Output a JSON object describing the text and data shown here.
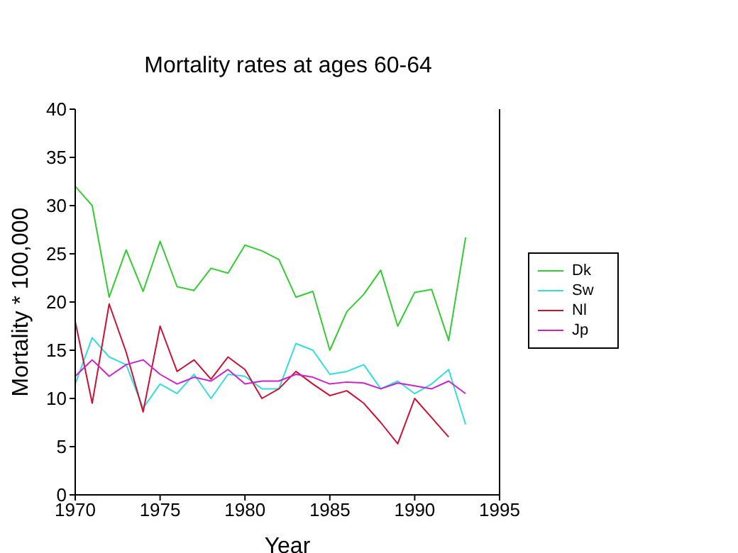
{
  "chart_data": {
    "type": "line",
    "title": "Mortality rates at ages 60-64",
    "xlabel": "Year",
    "ylabel": "Mortality * 100,000",
    "x": [
      1970,
      1971,
      1972,
      1973,
      1974,
      1975,
      1976,
      1977,
      1978,
      1979,
      1980,
      1981,
      1982,
      1983,
      1984,
      1985,
      1986,
      1987,
      1988,
      1989,
      1990,
      1991,
      1992,
      1993
    ],
    "series": [
      {
        "name": "Dk",
        "color": "#33cc33",
        "values": [
          32,
          30,
          20.5,
          25.4,
          21.1,
          26.3,
          21.6,
          21.2,
          23.5,
          23,
          25.9,
          25.3,
          24.4,
          20.5,
          21.1,
          15,
          19,
          20.8,
          23.3,
          17.5,
          21,
          21.3,
          16,
          26.7
        ]
      },
      {
        "name": "Sw",
        "color": "#33dddd",
        "values": [
          11.5,
          16.3,
          14.3,
          13.5,
          9,
          11.5,
          10.5,
          12.5,
          10,
          12.5,
          12.3,
          11,
          11,
          15.7,
          15,
          12.5,
          12.8,
          13.5,
          11,
          11.8,
          10.5,
          11.5,
          13,
          7.3
        ]
      },
      {
        "name": "Nl",
        "color": "#cc1133",
        "values": [
          18,
          9.5,
          19.8,
          14.8,
          8.6,
          17.5,
          12.8,
          14,
          12,
          14.3,
          13,
          10,
          11,
          12.8,
          11.5,
          10.3,
          10.8,
          9.5,
          7.5,
          5.3,
          10,
          8,
          6,
          null
        ]
      },
      {
        "name": "Jp",
        "color": "#cc22cc",
        "values": [
          12.3,
          14,
          12.3,
          13.5,
          14,
          12.5,
          11.5,
          12.2,
          11.8,
          13,
          11.5,
          11.8,
          11.8,
          12.5,
          12.2,
          11.5,
          11.7,
          11.6,
          11,
          11.6,
          11.3,
          11,
          11.8,
          10.5
        ]
      }
    ],
    "xlim": [
      1970,
      1995
    ],
    "xticks": [
      1970,
      1975,
      1980,
      1985,
      1990,
      1995
    ],
    "ylim": [
      0,
      40
    ],
    "yticks": [
      0,
      5,
      10,
      15,
      20,
      25,
      30,
      35,
      40
    ],
    "grid": false,
    "legend": "right",
    "marker": "none",
    "line_style": "solid"
  }
}
